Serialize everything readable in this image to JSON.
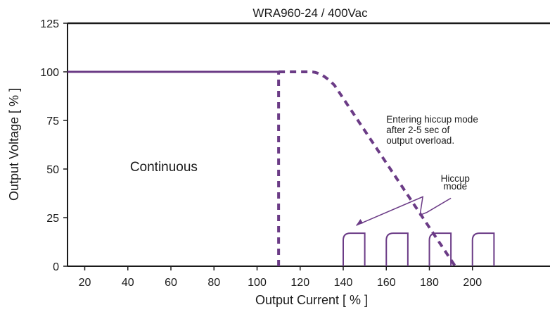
{
  "chart_data": {
    "type": "line",
    "title": "WRA960-24 / 400Vac",
    "xlabel": "Output Current [ % ]",
    "ylabel": "Output Voltage  [ % ]",
    "xlim": [
      12,
      236
    ],
    "ylim": [
      0,
      125
    ],
    "xticks": [
      20,
      40,
      60,
      80,
      100,
      120,
      140,
      160,
      180,
      200
    ],
    "yticks": [
      0,
      25,
      50,
      75,
      100,
      125
    ],
    "grid": false,
    "line_color": "#6b3b86",
    "series": [
      {
        "style": "solid",
        "x": [
          12,
          110
        ],
        "y": [
          100,
          100
        ]
      },
      {
        "style": "dashed",
        "x": [
          110,
          110
        ],
        "y": [
          0,
          100
        ]
      },
      {
        "style": "dashed",
        "x": [
          110,
          125,
          130,
          136,
          192
        ],
        "y": [
          100,
          100,
          98,
          93,
          0
        ]
      }
    ],
    "hiccup_pulses": [
      {
        "x_start": 140,
        "x_end": 150,
        "y": 17
      },
      {
        "x_start": 160,
        "x_end": 170,
        "y": 17
      },
      {
        "x_start": 180,
        "x_end": 190,
        "y": 17
      },
      {
        "x_start": 200,
        "x_end": 210,
        "y": 17
      }
    ],
    "annotations": [
      {
        "text": "Continuous",
        "x": 41,
        "y": 49,
        "size": "big"
      },
      {
        "text": "Entering hiccup mode",
        "x": 160,
        "y": 74
      },
      {
        "text": "after 2-5 sec of",
        "x": 160,
        "y": 68.5
      },
      {
        "text": "output overload.",
        "x": 160,
        "y": 63
      },
      {
        "text": "Hiccup",
        "x": 192,
        "y": 43.5,
        "anchor": "middle"
      },
      {
        "text": "mode",
        "x": 192,
        "y": 39.5,
        "anchor": "middle"
      }
    ]
  }
}
